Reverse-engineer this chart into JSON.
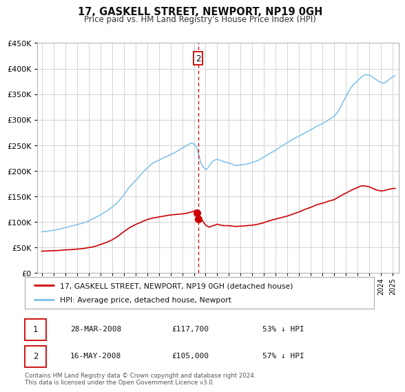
{
  "title": "17, GASKELL STREET, NEWPORT, NP19 0GH",
  "subtitle": "Price paid vs. HM Land Registry's House Price Index (HPI)",
  "ylim": [
    0,
    450000
  ],
  "yticks": [
    0,
    50000,
    100000,
    150000,
    200000,
    250000,
    300000,
    350000,
    400000,
    450000
  ],
  "ytick_labels": [
    "£0",
    "£50K",
    "£100K",
    "£150K",
    "£200K",
    "£250K",
    "£300K",
    "£350K",
    "£400K",
    "£450K"
  ],
  "xlim_start": 1994.6,
  "xlim_end": 2025.5,
  "hpi_color": "#7bbfe8",
  "price_color": "#cc0000",
  "vline_color": "#cc0000",
  "dot_color": "#cc0000",
  "annotation_box_color": "#cc0000",
  "vline_x": 2008.37,
  "dot1_x": 2008.24,
  "dot1_y": 117700,
  "dot2_x": 2008.37,
  "dot2_y": 105000,
  "legend_label_red": "17, GASKELL STREET, NEWPORT, NP19 0GH (detached house)",
  "legend_label_blue": "HPI: Average price, detached house, Newport",
  "transaction1_date": "28-MAR-2008",
  "transaction1_price": "£117,700",
  "transaction1_hpi": "53% ↓ HPI",
  "transaction2_date": "16-MAY-2008",
  "transaction2_price": "£105,000",
  "transaction2_hpi": "57% ↓ HPI",
  "footer": "Contains HM Land Registry data © Crown copyright and database right 2024.\nThis data is licensed under the Open Government Licence v3.0.",
  "background_color": "#ffffff",
  "grid_color": "#cccccc",
  "hpi_data": [
    [
      1995.0,
      80000
    ],
    [
      1995.5,
      81000
    ],
    [
      1996.0,
      83000
    ],
    [
      1996.5,
      85000
    ],
    [
      1997.0,
      88000
    ],
    [
      1997.5,
      91000
    ],
    [
      1998.0,
      94000
    ],
    [
      1998.5,
      97000
    ],
    [
      1999.0,
      101000
    ],
    [
      1999.5,
      107000
    ],
    [
      2000.0,
      113000
    ],
    [
      2000.5,
      120000
    ],
    [
      2001.0,
      128000
    ],
    [
      2001.5,
      138000
    ],
    [
      2002.0,
      152000
    ],
    [
      2002.5,
      168000
    ],
    [
      2003.0,
      180000
    ],
    [
      2003.5,
      193000
    ],
    [
      2004.0,
      205000
    ],
    [
      2004.5,
      215000
    ],
    [
      2005.0,
      220000
    ],
    [
      2005.3,
      224000
    ],
    [
      2005.6,
      227000
    ],
    [
      2006.0,
      231000
    ],
    [
      2006.5,
      237000
    ],
    [
      2007.0,
      244000
    ],
    [
      2007.3,
      248000
    ],
    [
      2007.6,
      252000
    ],
    [
      2007.8,
      254000
    ],
    [
      2008.0,
      252000
    ],
    [
      2008.2,
      248000
    ],
    [
      2008.4,
      232000
    ],
    [
      2008.6,
      215000
    ],
    [
      2008.8,
      207000
    ],
    [
      2009.0,
      202000
    ],
    [
      2009.2,
      205000
    ],
    [
      2009.4,
      212000
    ],
    [
      2009.6,
      218000
    ],
    [
      2009.8,
      221000
    ],
    [
      2010.0,
      222000
    ],
    [
      2010.3,
      220000
    ],
    [
      2010.6,
      217000
    ],
    [
      2011.0,
      215000
    ],
    [
      2011.3,
      212000
    ],
    [
      2011.6,
      210000
    ],
    [
      2012.0,
      211000
    ],
    [
      2012.3,
      212000
    ],
    [
      2012.6,
      213000
    ],
    [
      2013.0,
      216000
    ],
    [
      2013.5,
      220000
    ],
    [
      2014.0,
      227000
    ],
    [
      2014.5,
      234000
    ],
    [
      2015.0,
      240000
    ],
    [
      2015.5,
      248000
    ],
    [
      2016.0,
      255000
    ],
    [
      2016.5,
      262000
    ],
    [
      2017.0,
      268000
    ],
    [
      2017.5,
      274000
    ],
    [
      2018.0,
      280000
    ],
    [
      2018.5,
      287000
    ],
    [
      2019.0,
      292000
    ],
    [
      2019.5,
      299000
    ],
    [
      2020.0,
      307000
    ],
    [
      2020.3,
      315000
    ],
    [
      2020.6,
      328000
    ],
    [
      2021.0,
      345000
    ],
    [
      2021.3,
      358000
    ],
    [
      2021.6,
      368000
    ],
    [
      2022.0,
      376000
    ],
    [
      2022.3,
      383000
    ],
    [
      2022.6,
      388000
    ],
    [
      2023.0,
      387000
    ],
    [
      2023.2,
      385000
    ],
    [
      2023.4,
      381000
    ],
    [
      2023.6,
      378000
    ],
    [
      2023.8,
      375000
    ],
    [
      2024.0,
      373000
    ],
    [
      2024.2,
      371000
    ],
    [
      2024.4,
      373000
    ],
    [
      2024.6,
      377000
    ],
    [
      2024.8,
      381000
    ],
    [
      2025.0,
      384000
    ],
    [
      2025.2,
      386000
    ]
  ],
  "price_data": [
    [
      1995.0,
      42000
    ],
    [
      1995.5,
      42500
    ],
    [
      1996.0,
      43000
    ],
    [
      1996.5,
      43500
    ],
    [
      1997.0,
      44500
    ],
    [
      1997.5,
      45000
    ],
    [
      1998.0,
      46000
    ],
    [
      1998.5,
      47000
    ],
    [
      1999.0,
      49000
    ],
    [
      1999.5,
      51000
    ],
    [
      2000.0,
      55000
    ],
    [
      2000.5,
      59000
    ],
    [
      2001.0,
      64000
    ],
    [
      2001.5,
      71000
    ],
    [
      2002.0,
      80000
    ],
    [
      2002.5,
      88000
    ],
    [
      2003.0,
      94000
    ],
    [
      2003.5,
      99000
    ],
    [
      2004.0,
      104000
    ],
    [
      2004.5,
      107000
    ],
    [
      2005.0,
      109000
    ],
    [
      2005.5,
      111000
    ],
    [
      2006.0,
      113000
    ],
    [
      2006.5,
      114000
    ],
    [
      2007.0,
      115000
    ],
    [
      2007.5,
      117000
    ],
    [
      2007.8,
      119000
    ],
    [
      2008.0,
      120500
    ],
    [
      2008.2,
      122000
    ],
    [
      2008.35,
      117700
    ],
    [
      2008.5,
      109000
    ],
    [
      2008.7,
      103000
    ],
    [
      2009.0,
      93000
    ],
    [
      2009.3,
      89000
    ],
    [
      2009.5,
      91000
    ],
    [
      2009.8,
      93000
    ],
    [
      2010.0,
      95000
    ],
    [
      2010.3,
      93000
    ],
    [
      2010.6,
      92000
    ],
    [
      2011.0,
      92000
    ],
    [
      2011.3,
      91000
    ],
    [
      2011.6,
      90500
    ],
    [
      2012.0,
      91000
    ],
    [
      2012.5,
      92000
    ],
    [
      2013.0,
      93000
    ],
    [
      2013.5,
      95000
    ],
    [
      2014.0,
      98000
    ],
    [
      2014.5,
      102000
    ],
    [
      2015.0,
      105000
    ],
    [
      2015.5,
      108000
    ],
    [
      2016.0,
      111000
    ],
    [
      2016.5,
      115000
    ],
    [
      2017.0,
      119000
    ],
    [
      2017.5,
      124000
    ],
    [
      2018.0,
      128000
    ],
    [
      2018.5,
      133000
    ],
    [
      2019.0,
      136000
    ],
    [
      2019.5,
      140000
    ],
    [
      2020.0,
      143000
    ],
    [
      2020.5,
      150000
    ],
    [
      2021.0,
      156000
    ],
    [
      2021.5,
      162000
    ],
    [
      2022.0,
      167000
    ],
    [
      2022.3,
      170000
    ],
    [
      2022.6,
      170000
    ],
    [
      2023.0,
      168000
    ],
    [
      2023.3,
      165000
    ],
    [
      2023.6,
      162000
    ],
    [
      2024.0,
      160000
    ],
    [
      2024.3,
      161000
    ],
    [
      2024.6,
      163000
    ],
    [
      2025.0,
      165000
    ],
    [
      2025.2,
      165000
    ]
  ]
}
